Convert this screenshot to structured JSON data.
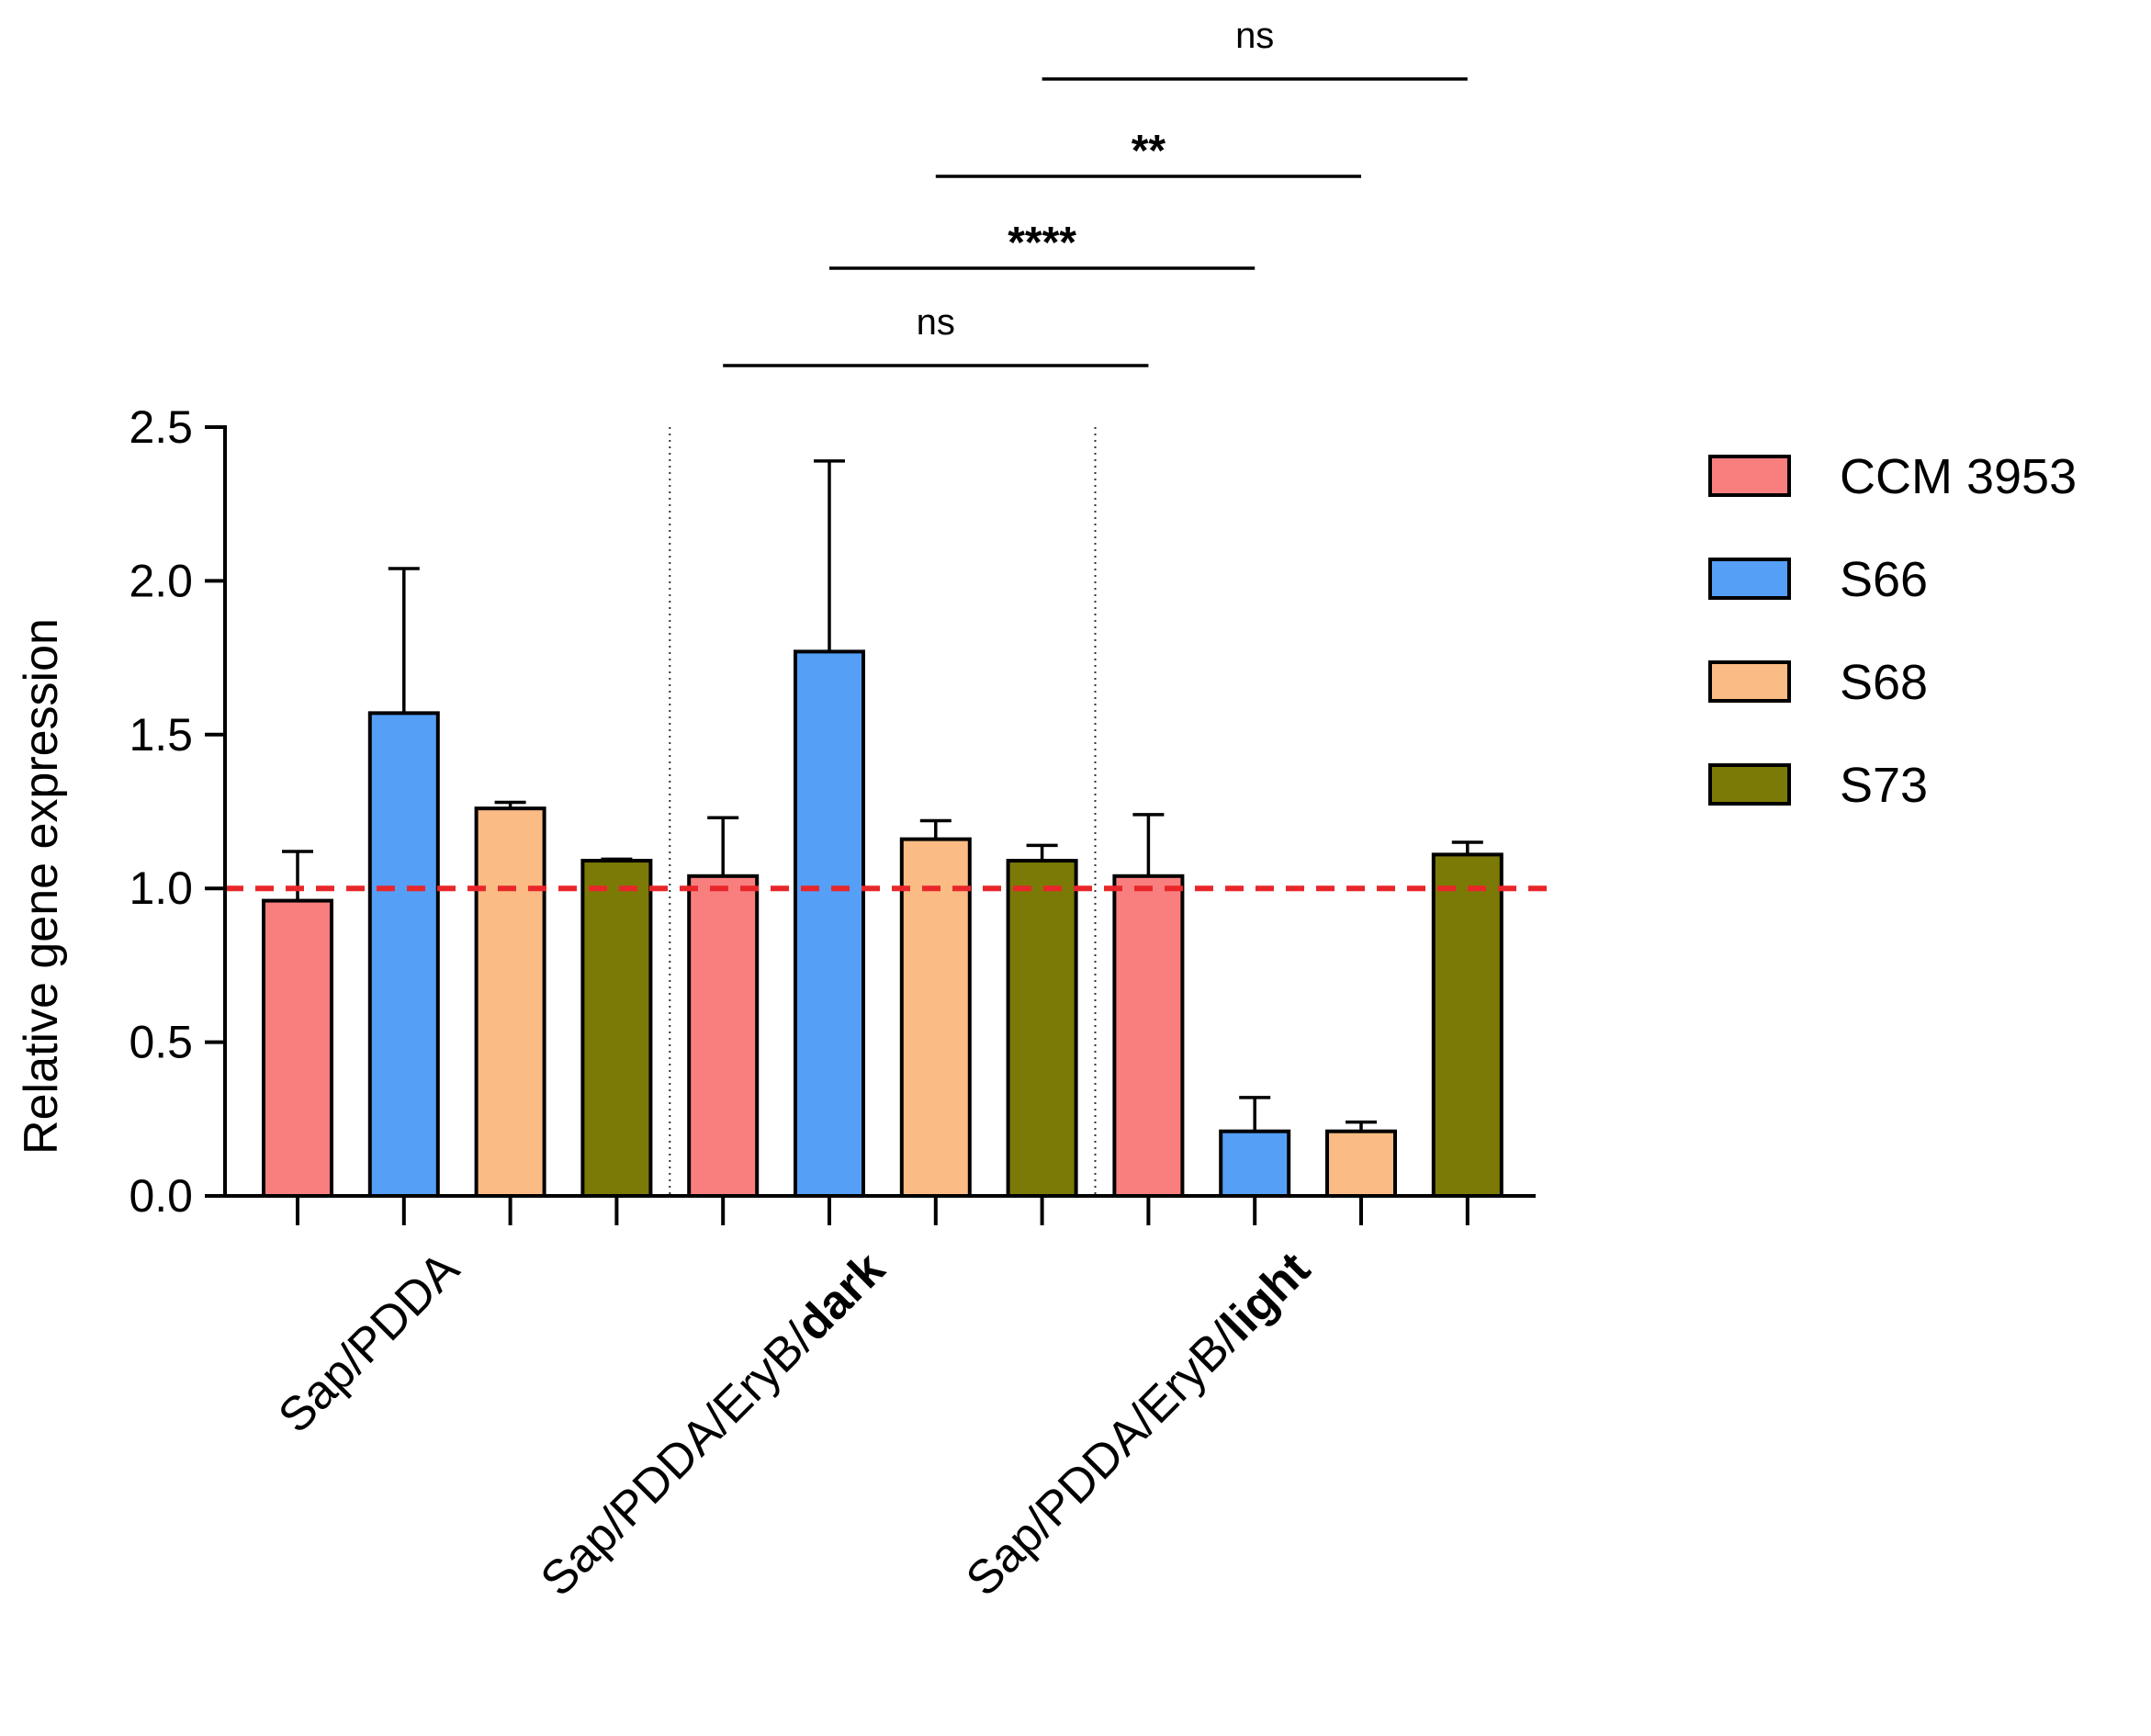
{
  "chart_data": {
    "type": "bar",
    "title": "",
    "ylabel": "Relative gene expression",
    "ylim": [
      0,
      2.5
    ],
    "yticks": [
      "0.0",
      "0.5",
      "1.0",
      "1.5",
      "2.0",
      "2.5"
    ],
    "reference_line": {
      "y": 1.0,
      "color": "#e8262a",
      "style": "dashed"
    },
    "groups": [
      {
        "label_prefix": "Sap/PDDA",
        "label_bold": ""
      },
      {
        "label_prefix": "Sap/PDDA/EryB/",
        "label_bold": "dark"
      },
      {
        "label_prefix": "Sap/PDDA/EryB/",
        "label_bold": "light"
      }
    ],
    "series": [
      {
        "name": "CCM 3953",
        "color": "#f97f7f",
        "values": [
          0.96,
          1.04,
          1.04
        ],
        "errors": [
          0.16,
          0.19,
          0.2
        ]
      },
      {
        "name": "S66",
        "color": "#559ff7",
        "values": [
          1.57,
          1.77,
          0.21
        ],
        "errors": [
          0.47,
          0.62,
          0.11
        ]
      },
      {
        "name": "S68",
        "color": "#fbbb84",
        "values": [
          1.26,
          1.16,
          0.21
        ],
        "errors": [
          0.02,
          0.06,
          0.03
        ]
      },
      {
        "name": "S73",
        "color": "#7c7a06",
        "values": [
          1.09,
          1.09,
          1.11
        ],
        "errors": [
          0.005,
          0.05,
          0.04
        ]
      }
    ],
    "legend_position": "right",
    "significance": [
      {
        "label": "ns",
        "from_bar": 8,
        "to_bar": 12
      },
      {
        "label": "**",
        "from_bar": 7,
        "to_bar": 11
      },
      {
        "label": "****",
        "from_bar": 6,
        "to_bar": 10
      },
      {
        "label": "ns",
        "from_bar": 5,
        "to_bar": 9
      }
    ]
  }
}
